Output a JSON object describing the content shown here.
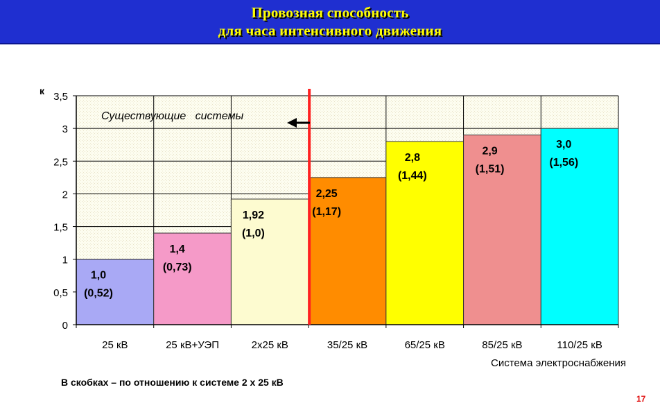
{
  "slide": {
    "title_line1": "Провозная способность",
    "title_line2": "для часа интенсивного движения",
    "footnote": "В скобках – по отношению к системе 2 х 25 кВ",
    "page_number": "17"
  },
  "chart_data": {
    "type": "bar",
    "title": "Провозная способность для часа интенсивного движения",
    "ylabel": "к",
    "xlabel": "Система электроснабжения",
    "ylim": [
      0,
      3.5
    ],
    "yticks": [
      0,
      0.5,
      1,
      1.5,
      2,
      2.5,
      3,
      3.5
    ],
    "ytick_labels": [
      "0",
      "0,5",
      "1",
      "1,5",
      "2",
      "2,5",
      "3",
      "3,5"
    ],
    "grid": true,
    "categories": [
      "25 кВ",
      "25 кВ+УЭП",
      "2х25 кВ",
      "35/25 кВ",
      "65/25 кВ",
      "85/25 кВ",
      "110/25 кВ"
    ],
    "values": [
      1.0,
      1.4,
      1.92,
      2.25,
      2.8,
      2.9,
      3.0
    ],
    "value_labels": [
      "1,0",
      "1,4",
      "1,92",
      "2,25",
      "2,8",
      "2,9",
      "3,0"
    ],
    "relative_labels": [
      "(0,52)",
      "(0,73)",
      "(1,0)",
      "(1,17)",
      "(1,44)",
      "(1,51)",
      "(1,56)"
    ],
    "colors": [
      "#a9a9f5",
      "#f59ac8",
      "#fdfbd0",
      "#ff8c00",
      "#ffff00",
      "#ef8f8f",
      "#00ffff"
    ],
    "annotation": "Существующие   системы",
    "divider_color": "#ff2020"
  }
}
